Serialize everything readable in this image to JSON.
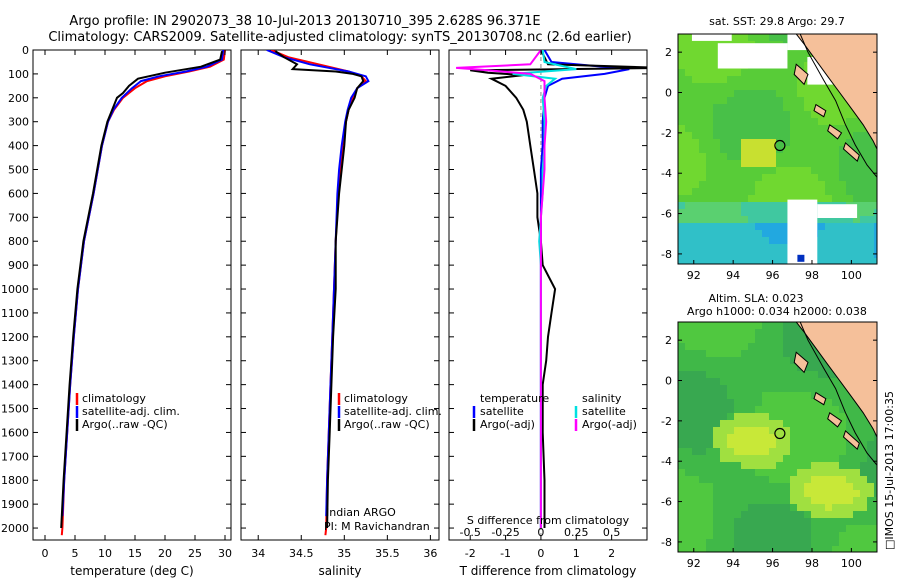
{
  "title_line1": "Argo profile: IN 2902073_38 10-Jul-2013 20130710_395 2.628S 96.371E",
  "title_line2": "Climatology: CARS2009. Satellite-adjusted climatology: synTS_20130708.nc (2.6d earlier)",
  "colors": {
    "climatology": "#ff0000",
    "satellite": "#0000ff",
    "argo": "#000000",
    "salinity_sat": "#00e0e0",
    "salinity_argo": "#ff00ff",
    "land": "#f5c09a"
  },
  "chart_data": [
    {
      "id": "temperature",
      "type": "line",
      "xlabel": "temperature (deg C)",
      "ylabel": "",
      "xlim": [
        -2,
        31
      ],
      "ylim": [
        2050,
        0
      ],
      "x_ticks": [
        "0",
        "5",
        "10",
        "15",
        "20",
        "25",
        "30"
      ],
      "x_tick_values": [
        0,
        5,
        10,
        15,
        20,
        25,
        30
      ],
      "y_ticks": [
        "0",
        "100",
        "200",
        "300",
        "400",
        "500",
        "600",
        "700",
        "800",
        "900",
        "1000",
        "1100",
        "1200",
        "1300",
        "1400",
        "1500",
        "1600",
        "1700",
        "1800",
        "1900",
        "2000"
      ],
      "y_tick_values": [
        0,
        100,
        200,
        300,
        400,
        500,
        600,
        700,
        800,
        900,
        1000,
        1100,
        1200,
        1300,
        1400,
        1500,
        1600,
        1700,
        1800,
        1900,
        2000
      ],
      "legend": [
        "climatology",
        "satellite-adj. clim.",
        "Argo(..raw -QC)"
      ],
      "series": [
        {
          "name": "climatology",
          "color": "#ff0000",
          "depth": [
            0,
            40,
            70,
            90,
            110,
            130,
            160,
            200,
            250,
            300,
            400,
            500,
            600,
            700,
            800,
            900,
            1000,
            1200,
            1400,
            1600,
            1800,
            2000,
            2030
          ],
          "x": [
            30,
            29.8,
            27.5,
            24,
            20,
            17,
            15,
            13,
            11.5,
            10.5,
            9.5,
            8.8,
            8.1,
            7.3,
            6.5,
            6,
            5.5,
            4.8,
            4.2,
            3.7,
            3.2,
            2.9,
            2.8
          ]
        },
        {
          "name": "satellite-adj. clim.",
          "color": "#0000ff",
          "depth": [
            0,
            40,
            70,
            90,
            110,
            130,
            160,
            200,
            250,
            300,
            400,
            500,
            600,
            700,
            800,
            900,
            1000,
            1200,
            1400,
            1600,
            1800,
            1950
          ],
          "x": [
            29.7,
            29.5,
            27,
            23.5,
            19,
            16,
            14.5,
            12.8,
            11.4,
            10.5,
            9.5,
            8.8,
            8.1,
            7.3,
            6.5,
            6,
            5.5,
            4.8,
            4.2,
            3.7,
            3.2,
            2.9
          ]
        },
        {
          "name": "Argo(..raw -QC)",
          "color": "#000000",
          "depth": [
            5,
            40,
            70,
            95,
            120,
            150,
            180,
            200,
            250,
            300,
            400,
            500,
            600,
            700,
            800,
            900,
            1000,
            1200,
            1400,
            1600,
            1800,
            2000
          ],
          "x": [
            29.5,
            29.2,
            26,
            20,
            15.5,
            14,
            13,
            12,
            11.2,
            10.4,
            9.4,
            8.7,
            8,
            7.2,
            6.4,
            5.9,
            5.4,
            4.7,
            4.1,
            3.6,
            3.1,
            2.7
          ]
        }
      ]
    },
    {
      "id": "salinity",
      "type": "line",
      "xlabel": "salinity",
      "xlim": [
        33.8,
        36.1
      ],
      "ylim": [
        2050,
        0
      ],
      "x_ticks": [
        "34",
        "34.5",
        "35",
        "35.5",
        "36"
      ],
      "x_tick_values": [
        34,
        34.5,
        35,
        35.5,
        36
      ],
      "legend": [
        "climatology",
        "satellite-adj. clim.",
        "Argo(..raw -QC)"
      ],
      "annotation": [
        "Indian ARGO",
        "PI: M Ravichandran"
      ],
      "series": [
        {
          "name": "climatology",
          "color": "#ff0000",
          "depth": [
            0,
            30,
            60,
            90,
            110,
            130,
            160,
            200,
            250,
            300,
            400,
            500,
            600,
            800,
            1000,
            1200,
            1400,
            1600,
            1800,
            2000,
            2030
          ],
          "x": [
            34.15,
            34.35,
            34.7,
            35.05,
            35.2,
            35.25,
            35.15,
            35.1,
            35.05,
            35.02,
            34.98,
            34.95,
            34.93,
            34.9,
            34.88,
            34.86,
            34.84,
            34.82,
            34.8,
            34.79,
            34.78
          ]
        },
        {
          "name": "satellite-adj. clim.",
          "color": "#0000ff",
          "depth": [
            0,
            30,
            60,
            90,
            110,
            130,
            160,
            200,
            250,
            300,
            400,
            500,
            600,
            800,
            1000,
            1200,
            1400,
            1600,
            1800,
            1950
          ],
          "x": [
            34.1,
            34.3,
            34.6,
            35.05,
            35.25,
            35.28,
            35.15,
            35.08,
            35.04,
            35.01,
            34.97,
            34.94,
            34.92,
            34.9,
            34.88,
            34.86,
            34.84,
            34.82,
            34.8,
            34.79
          ]
        },
        {
          "name": "Argo(..raw -QC)",
          "color": "#000000",
          "depth": [
            5,
            30,
            60,
            80,
            90,
            100,
            110,
            130,
            160,
            200,
            250,
            300,
            400,
            500,
            600,
            800,
            1000,
            1200,
            1400,
            1600,
            1800,
            2000
          ],
          "x": [
            34.2,
            34.3,
            34.45,
            34.4,
            34.9,
            35.1,
            35.2,
            35.22,
            35.15,
            35.12,
            35.05,
            35.02,
            35.0,
            34.97,
            34.94,
            34.9,
            34.9,
            34.87,
            34.85,
            34.83,
            34.81,
            34.8
          ]
        }
      ]
    },
    {
      "id": "difference",
      "type": "line",
      "xlabel": "T difference from climatology",
      "xlabel_top": "S difference from climatology",
      "xlim": [
        -2.6,
        3.0
      ],
      "ylim": [
        2050,
        0
      ],
      "x_ticks": [
        "-2",
        "-1",
        "0",
        "1",
        "2"
      ],
      "x_tick_values": [
        -2,
        -1,
        0,
        1,
        2
      ],
      "s_ticks": [
        "-0.5",
        "-0.25",
        "0",
        "0.25",
        "0.5"
      ],
      "s_tick_values": [
        -0.5,
        -0.25,
        0,
        0.25,
        0.5
      ],
      "legend_t_title": "temperature",
      "legend_s_title": "salinity",
      "legend": [
        "satellite",
        "Argo(-adj)",
        "satellite",
        "Argo(-adj)"
      ],
      "series": [
        {
          "name": "T satellite",
          "color": "#0000ff",
          "depth": [
            0,
            50,
            80,
            100,
            120,
            150,
            200,
            300,
            400,
            500,
            600,
            700,
            800,
            900,
            1000,
            1200,
            1400,
            1600,
            1800,
            2000
          ],
          "x": [
            0.1,
            0.3,
            2.5,
            1.8,
            0.6,
            0.2,
            0.1,
            0.05,
            0.05,
            0,
            0,
            0,
            0,
            0,
            0,
            0,
            0,
            0,
            0,
            0
          ]
        },
        {
          "name": "T Argo(-adj)",
          "color": "#000000",
          "depth": [
            0,
            60,
            75,
            85,
            95,
            105,
            120,
            150,
            200,
            250,
            300,
            400,
            500,
            600,
            700,
            800,
            900,
            1000,
            1100,
            1200,
            1300,
            1400,
            1600,
            1800,
            2000
          ],
          "x": [
            0,
            0.2,
            3.5,
            -2,
            -1.5,
            -0.5,
            -1.4,
            -1,
            -0.7,
            -0.5,
            -0.4,
            -0.3,
            -0.2,
            -0.1,
            -0.1,
            0,
            0.05,
            0.4,
            0.3,
            0.2,
            0.15,
            0.05,
            0.05,
            0.1,
            0.1
          ]
        },
        {
          "name": "S satellite",
          "color": "#00e0e0",
          "depth": [
            0,
            50,
            80,
            100,
            120,
            150,
            200,
            300,
            400,
            500,
            600,
            700,
            800,
            900,
            1000,
            1200,
            1400,
            1600,
            1800,
            2000
          ],
          "x": [
            0.05,
            0.1,
            1,
            -0.8,
            0.4,
            0.15,
            0.05,
            0.1,
            0.1,
            0.05,
            0.05,
            0,
            -0.05,
            0,
            0,
            0,
            0,
            0,
            0,
            0
          ]
        },
        {
          "name": "S Argo(-adj)",
          "color": "#ff00ff",
          "depth": [
            0,
            60,
            75,
            85,
            100,
            130,
            160,
            200,
            300,
            400,
            500,
            600,
            700,
            800,
            1000,
            1200,
            1400,
            1600,
            1800,
            2000
          ],
          "x": [
            0,
            -0.3,
            -2.4,
            -1.5,
            -0.3,
            0.1,
            0.1,
            0.1,
            0.15,
            0.1,
            0.1,
            0.05,
            0,
            0,
            0,
            0,
            0,
            0,
            0,
            0
          ]
        }
      ]
    },
    {
      "id": "sst_map",
      "type": "heatmap",
      "title": "sat. SST: 29.8  Argo: 29.7",
      "xlim": [
        91.2,
        101.3
      ],
      "ylim": [
        -8.5,
        2.9
      ],
      "x_ticks": [
        "92",
        "94",
        "96",
        "98",
        "100"
      ],
      "x_tick_values": [
        92,
        94,
        96,
        98,
        100
      ],
      "y_ticks": [
        "2",
        "0",
        "-2",
        "-4",
        "-6",
        "-8"
      ],
      "y_tick_values": [
        2,
        0,
        -2,
        -4,
        -6,
        -8
      ],
      "argo_position": [
        96.371,
        -2.628
      ]
    },
    {
      "id": "sla_map",
      "type": "heatmap",
      "title_line1": "Altim. SLA: 0.023",
      "title_line2": "Argo h1000: 0.034 h2000: 0.038",
      "xlim": [
        91.2,
        101.3
      ],
      "ylim": [
        -8.5,
        2.9
      ],
      "x_ticks": [
        "92",
        "94",
        "96",
        "98",
        "100"
      ],
      "x_tick_values": [
        92,
        94,
        96,
        98,
        100
      ],
      "y_ticks": [
        "2",
        "0",
        "-2",
        "-4",
        "-6",
        "-8"
      ],
      "y_tick_values": [
        2,
        0,
        -2,
        -4,
        -6,
        -8
      ],
      "argo_position": [
        96.371,
        -2.628
      ]
    }
  ],
  "footer_stamp": "□IMOS 15-Jul-2013 17:00:35"
}
